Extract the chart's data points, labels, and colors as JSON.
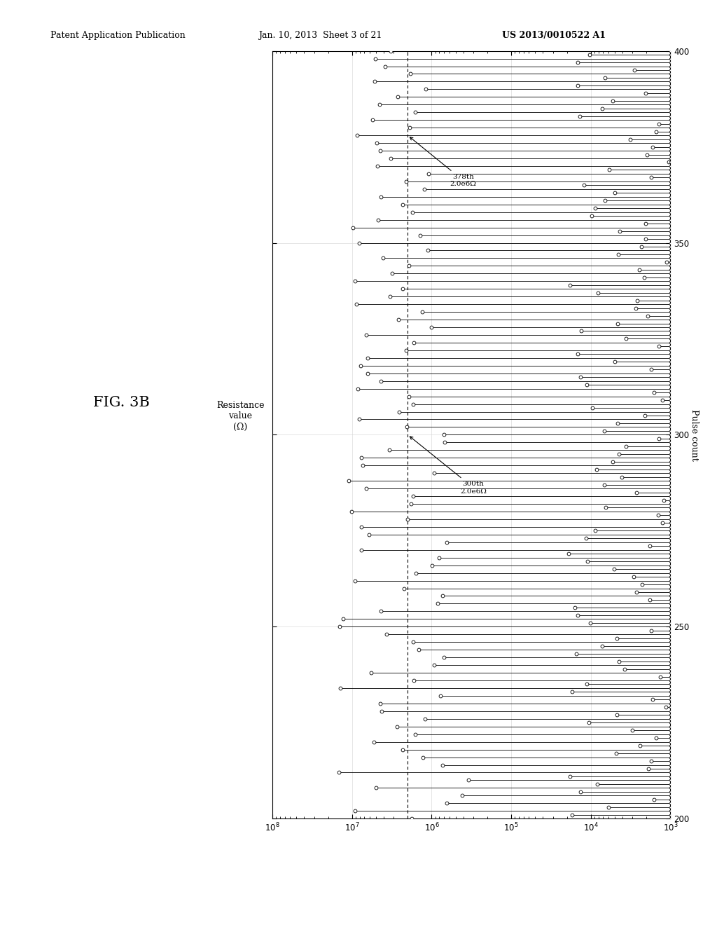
{
  "xlabel_bottom": "Resistance\nvalue\n(Ω)",
  "ylabel_right": "Pulse count",
  "xlim_resistance": [
    1000.0,
    100000000.0
  ],
  "ylim_pulse": [
    200,
    400
  ],
  "dashed_x": 2000000.0,
  "annotation1_pulse": 300,
  "annotation1_res": 2000000.0,
  "annotation1_text": "300th\n2.0e6Ω",
  "annotation2_pulse": 378,
  "annotation2_res": 2000000.0,
  "annotation2_text": "378th\n2.0e6Ω",
  "figure_label": "FIG. 3B",
  "header_left": "Patent Application Publication",
  "header_center": "Jan. 10, 2013  Sheet 3 of 21",
  "header_right": "US 2013/0010522 A1",
  "bg_color": "#ffffff",
  "n_start": 200,
  "n_end": 400,
  "seed": 42
}
